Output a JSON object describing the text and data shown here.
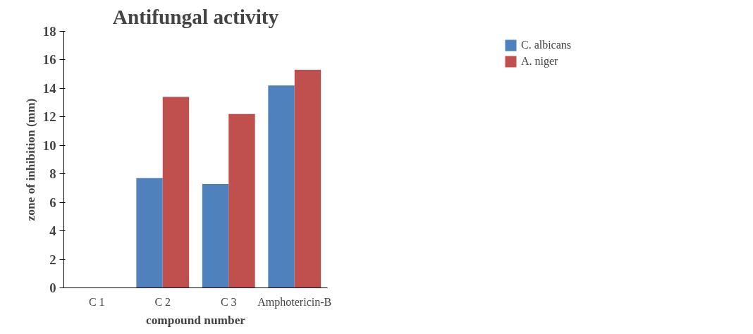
{
  "chart_data": {
    "type": "bar",
    "title": "Antifungal activity",
    "xlabel": "compound number",
    "ylabel": "zone of inhibition (mm)",
    "categories": [
      "C 1",
      "C 2",
      "C 3",
      "Amphotericin-B"
    ],
    "series": [
      {
        "name": "C. albicans",
        "color": "#4f81bd",
        "values": [
          0,
          7.7,
          7.3,
          14.2
        ]
      },
      {
        "name": "A. niger",
        "color": "#c0504d",
        "values": [
          0,
          13.4,
          12.2,
          15.3
        ]
      }
    ],
    "ylim": [
      0,
      18
    ],
    "yticks": [
      0,
      2,
      4,
      6,
      8,
      10,
      12,
      14,
      16,
      18
    ],
    "grid": false,
    "legend": "top right"
  }
}
